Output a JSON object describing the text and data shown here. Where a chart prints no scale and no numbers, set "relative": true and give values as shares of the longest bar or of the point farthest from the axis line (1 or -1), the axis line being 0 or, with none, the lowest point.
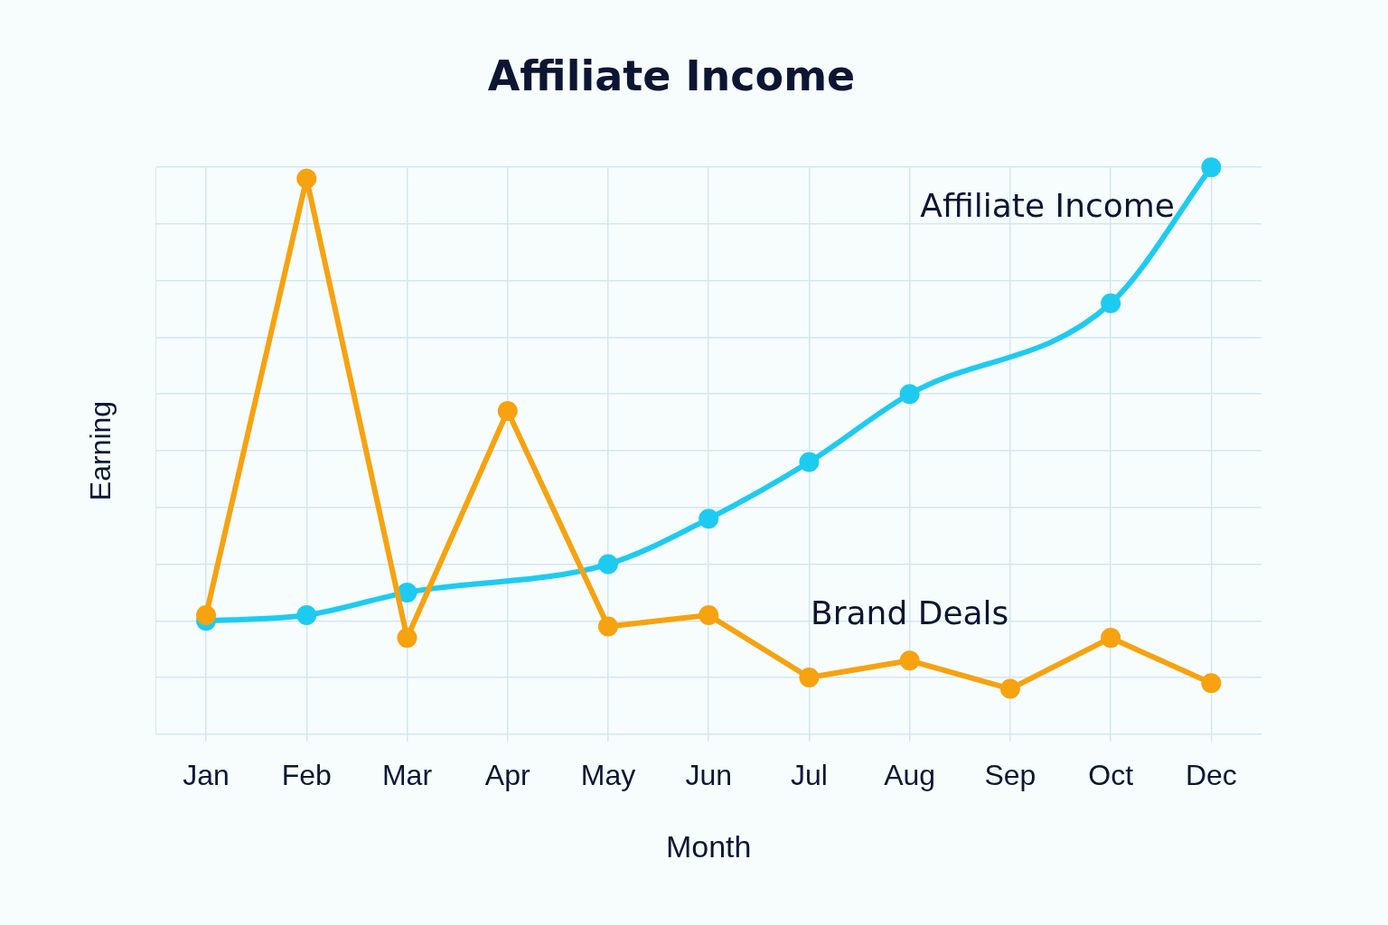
{
  "chart_data": {
    "type": "line",
    "title": "Affiliate Income",
    "xlabel": "Month",
    "ylabel": "Earning",
    "categories": [
      "Jan",
      "Feb",
      "Mar",
      "Apr",
      "May",
      "Jun",
      "Jul",
      "Aug",
      "Sep",
      "Oct",
      "Dec"
    ],
    "relative": true,
    "grid": true,
    "legend": false,
    "marker": "circle",
    "series": [
      {
        "name": "Affiliate Income",
        "color": "#1ecbf0",
        "values": [
          0.2,
          0.21,
          0.25,
          null,
          0.3,
          0.38,
          0.48,
          0.6,
          null,
          0.76,
          1.0
        ]
      },
      {
        "name": "Brand Deals",
        "color": "#f7a20f",
        "values": [
          0.21,
          0.98,
          0.17,
          0.57,
          0.19,
          0.21,
          0.1,
          0.13,
          0.08,
          0.17,
          0.09
        ]
      }
    ]
  }
}
